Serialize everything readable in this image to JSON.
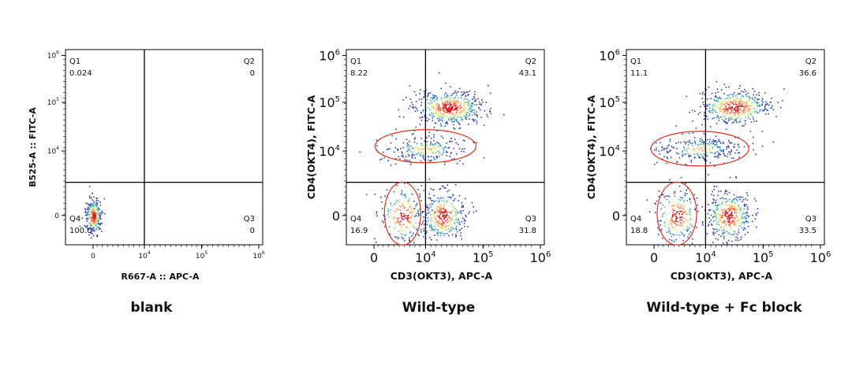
{
  "accent": {
    "gate": "#e0301e",
    "frame": "#000000"
  },
  "chart_data": [
    {
      "type": "scatter",
      "caption": "blank",
      "xlabel": "R667-A :: APC-A",
      "ylabel": "B525-A :: FITC-A",
      "x_ticks": [
        "0",
        "10^4",
        "10^5",
        "10^6"
      ],
      "y_ticks": [
        "0",
        "10^4",
        "10^5",
        "10^6"
      ],
      "quadrant_divider": {
        "x": "10^4",
        "y": "10^3.5"
      },
      "quadrants": [
        {
          "name": "Q1",
          "value": "0.024"
        },
        {
          "name": "Q2",
          "value": "0"
        },
        {
          "name": "Q3",
          "value": "0"
        },
        {
          "name": "Q4",
          "value": "100.0"
        }
      ],
      "populations": [
        {
          "x": 0,
          "y": 0,
          "count": 900
        }
      ],
      "gates": []
    },
    {
      "type": "scatter",
      "caption": "Wild-type",
      "xlabel": "CD3(OKT3), APC-A",
      "ylabel": "CD4(OKT4), FITC-A",
      "x_ticks": [
        "0",
        "10^4",
        "10^5",
        "10^6"
      ],
      "y_ticks": [
        "0",
        "10^4",
        "10^5",
        "10^6"
      ],
      "quadrant_divider": {
        "x": "10^4",
        "y": "10^3.5"
      },
      "quadrants": [
        {
          "name": "Q1",
          "value": "8.22"
        },
        {
          "name": "Q2",
          "value": "43.1"
        },
        {
          "name": "Q3",
          "value": "31.8"
        },
        {
          "name": "Q4",
          "value": "16.9"
        }
      ],
      "populations": [
        {
          "x": "10^4.4",
          "y": "10^4.9",
          "count": 1600
        },
        {
          "x": "10^4.0",
          "y": "10^4.05",
          "count": 700
        },
        {
          "x": "10^4.3",
          "y": "0",
          "count": 1100
        },
        {
          "x": "10^3.6",
          "y": "0",
          "count": 650
        }
      ],
      "gates": [
        {
          "shape": "ellipse",
          "x": "10^4.0",
          "y": "10^4.1"
        },
        {
          "shape": "ellipse",
          "x": "10^3.6",
          "y": "0"
        }
      ]
    },
    {
      "type": "scatter",
      "caption": "Wild-type + Fc block",
      "xlabel": "CD3(OKT3), APC-A",
      "ylabel": "CD4(OKT4), FITC-A",
      "x_ticks": [
        "0",
        "10^4",
        "10^5",
        "10^6"
      ],
      "y_ticks": [
        "0",
        "10^4",
        "10^5",
        "10^6"
      ],
      "quadrant_divider": {
        "x": "10^4",
        "y": "10^3.5"
      },
      "quadrants": [
        {
          "name": "Q1",
          "value": "11.1"
        },
        {
          "name": "Q2",
          "value": "36.6"
        },
        {
          "name": "Q3",
          "value": "33.5"
        },
        {
          "name": "Q4",
          "value": "18.8"
        }
      ],
      "populations": [
        {
          "x": "10^4.5",
          "y": "10^4.9",
          "count": 1400
        },
        {
          "x": "10^3.9",
          "y": "10^4.05",
          "count": 800
        },
        {
          "x": "10^4.4",
          "y": "0",
          "count": 1200
        },
        {
          "x": "10^3.5",
          "y": "0",
          "count": 700
        }
      ],
      "gates": [
        {
          "shape": "ellipse",
          "x": "10^3.9",
          "y": "10^4.05"
        },
        {
          "shape": "ellipse",
          "x": "10^3.5",
          "y": "0"
        }
      ]
    }
  ]
}
